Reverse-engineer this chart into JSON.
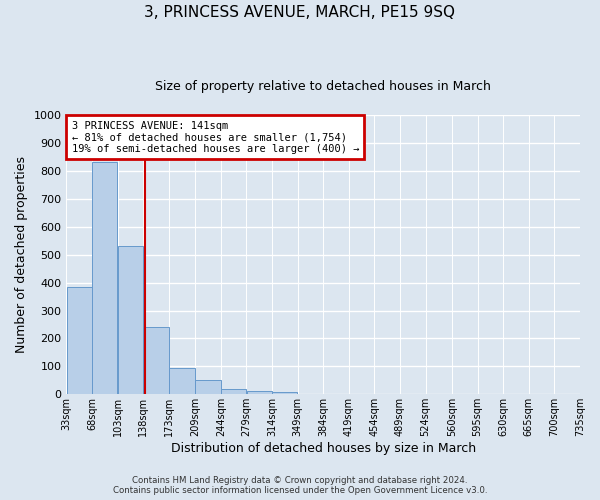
{
  "title": "3, PRINCESS AVENUE, MARCH, PE15 9SQ",
  "subtitle": "Size of property relative to detached houses in March",
  "xlabel": "Distribution of detached houses by size in March",
  "ylabel": "Number of detached properties",
  "bar_left_edges": [
    33,
    68,
    103,
    138,
    173,
    209,
    244,
    279,
    314,
    349,
    384,
    419,
    454,
    489,
    524,
    560,
    595,
    630,
    665,
    700
  ],
  "bar_widths": [
    35,
    35,
    35,
    35,
    36,
    35,
    35,
    35,
    35,
    35,
    35,
    35,
    35,
    35,
    36,
    35,
    35,
    35,
    35,
    35
  ],
  "bar_heights": [
    385,
    830,
    530,
    240,
    95,
    50,
    20,
    12,
    7,
    0,
    0,
    0,
    0,
    0,
    0,
    0,
    0,
    0,
    0,
    0
  ],
  "bar_color": "#b8cfe8",
  "bar_edge_color": "#6699cc",
  "vline_x": 141,
  "vline_color": "#cc0000",
  "ylim": [
    0,
    1000
  ],
  "yticks": [
    0,
    100,
    200,
    300,
    400,
    500,
    600,
    700,
    800,
    900,
    1000
  ],
  "xlim_left": 33,
  "xlim_right": 735,
  "tick_positions": [
    33,
    68,
    103,
    138,
    173,
    209,
    244,
    279,
    314,
    349,
    384,
    419,
    454,
    489,
    524,
    560,
    595,
    630,
    665,
    700,
    735
  ],
  "tick_labels": [
    "33sqm",
    "68sqm",
    "103sqm",
    "138sqm",
    "173sqm",
    "209sqm",
    "244sqm",
    "279sqm",
    "314sqm",
    "349sqm",
    "384sqm",
    "419sqm",
    "454sqm",
    "489sqm",
    "524sqm",
    "560sqm",
    "595sqm",
    "630sqm",
    "665sqm",
    "700sqm",
    "735sqm"
  ],
  "annotation_title": "3 PRINCESS AVENUE: 141sqm",
  "annotation_line1": "← 81% of detached houses are smaller (1,754)",
  "annotation_line2": "19% of semi-detached houses are larger (400) →",
  "annotation_box_color": "#cc0000",
  "footer_line1": "Contains HM Land Registry data © Crown copyright and database right 2024.",
  "footer_line2": "Contains public sector information licensed under the Open Government Licence v3.0.",
  "background_color": "#dce6f0",
  "plot_bg_color": "#dce6f0",
  "grid_color": "#ffffff",
  "figsize": [
    6.0,
    5.0
  ],
  "dpi": 100
}
